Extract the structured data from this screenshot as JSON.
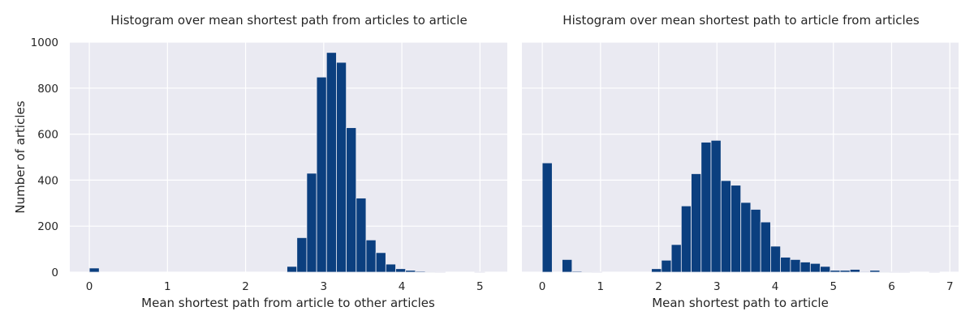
{
  "theme": {
    "background": "#eaeaf2",
    "grid": "#ffffff",
    "bar": "#0b3f7f",
    "text": "#262626"
  },
  "chart_data": [
    {
      "type": "bar",
      "title": "Histogram over mean shortest path from articles to article",
      "xlabel": "Mean shortest path from article to other articles",
      "ylabel": "Number of articles",
      "xlim": [
        -0.25,
        5.35
      ],
      "ylim": [
        0,
        1000
      ],
      "xticks": [
        0,
        1,
        2,
        3,
        4,
        5
      ],
      "yticks": [
        0,
        200,
        400,
        600,
        800,
        1000
      ],
      "grid": true,
      "bin_edges": [
        0.0,
        0.1265,
        0.253,
        0.3795,
        0.506,
        0.6325,
        0.759,
        0.8855,
        1.012,
        1.1385,
        1.265,
        1.3915,
        1.518,
        1.6445,
        1.771,
        1.8975,
        2.024,
        2.1505,
        2.277,
        2.4035,
        2.53,
        2.6565,
        2.783,
        2.9095,
        3.036,
        3.1625,
        3.289,
        3.4155,
        3.542,
        3.6685,
        3.795,
        3.9215,
        4.048,
        4.1745,
        4.301,
        4.4275,
        4.554,
        4.6805,
        4.807,
        4.9335,
        5.06
      ],
      "counts": [
        18,
        0,
        0,
        0,
        0,
        0,
        0,
        0,
        0,
        0,
        0,
        0,
        0,
        0,
        0,
        0,
        0,
        0,
        0,
        0,
        25,
        150,
        430,
        848,
        955,
        912,
        628,
        322,
        140,
        85,
        35,
        15,
        8,
        4,
        2,
        1,
        0,
        0,
        0,
        1
      ]
    },
    {
      "type": "bar",
      "title": "Histogram over mean shortest path to article from articles",
      "xlabel": "Mean shortest path to article",
      "ylabel": "",
      "xlim": [
        -0.35,
        7.15
      ],
      "ylim": [
        0,
        1000
      ],
      "xticks": [
        0,
        1,
        2,
        3,
        4,
        5,
        6,
        7
      ],
      "yticks": [
        0,
        200,
        400,
        600,
        800,
        1000
      ],
      "grid": true,
      "bin_edges": [
        0.0,
        0.1705,
        0.341,
        0.5115,
        0.682,
        0.8525,
        1.023,
        1.1935,
        1.364,
        1.5345,
        1.705,
        1.8755,
        2.046,
        2.2165,
        2.387,
        2.5575,
        2.728,
        2.8985,
        3.069,
        3.2395,
        3.41,
        3.5805,
        3.751,
        3.9215,
        4.092,
        4.2625,
        4.433,
        4.6035,
        4.774,
        4.9445,
        5.115,
        5.2855,
        5.456,
        5.6265,
        5.797,
        5.9675,
        6.138,
        6.3085,
        6.479,
        6.6495,
        6.82
      ],
      "counts": [
        475,
        0,
        55,
        4,
        2,
        1,
        0,
        0,
        0,
        0,
        0,
        15,
        52,
        120,
        288,
        428,
        565,
        573,
        398,
        378,
        303,
        273,
        218,
        113,
        65,
        55,
        44,
        38,
        25,
        8,
        8,
        12,
        3,
        8,
        2,
        1,
        1,
        0,
        0,
        1
      ]
    }
  ]
}
